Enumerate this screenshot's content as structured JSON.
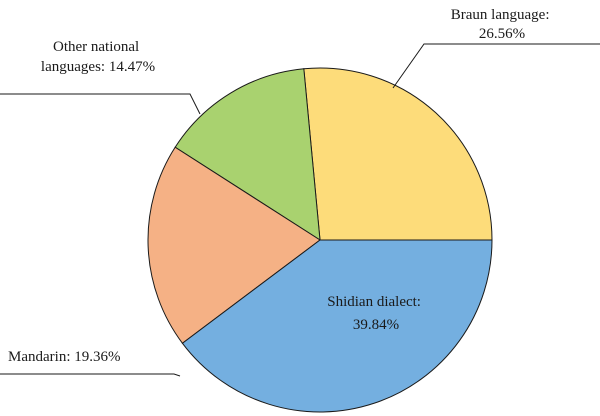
{
  "chart_data": {
    "type": "pie",
    "title": "",
    "start_angle_deg": 0,
    "direction": "counterclockwise",
    "slices": [
      {
        "label_lines": [
          "Braun language:",
          "26.56%"
        ],
        "name": "Braun language",
        "value": 26.56,
        "color": "#fddc7a"
      },
      {
        "label_lines": [
          "Other national",
          "languages: 14.47%"
        ],
        "name": "Other national languages",
        "value": 14.47,
        "color": "#a9d26f"
      },
      {
        "label_lines": [
          "Mandarin: 19.36%"
        ],
        "name": "Mandarin",
        "value": 19.36,
        "color": "#f5b185"
      },
      {
        "label_lines": [
          "Shidian dialect:",
          "39.84%"
        ],
        "name": "Shidian dialect",
        "value": 39.84,
        "color": "#74afe0"
      }
    ]
  }
}
